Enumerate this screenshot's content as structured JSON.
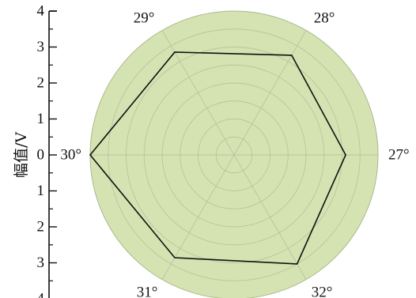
{
  "chart_data": {
    "type": "radar",
    "ylabel": "幅值/V",
    "r_range": [
      0,
      4
    ],
    "r_ticks": [
      0,
      1,
      2,
      3,
      4
    ],
    "axis_tick_labels": [
      "4",
      "3",
      "2",
      "1",
      "0",
      "1",
      "2",
      "3",
      "4"
    ],
    "categories": [
      "27°",
      "28°",
      "29°",
      "30°",
      "31°",
      "32°"
    ],
    "category_angles_deg": [
      0,
      60,
      120,
      180,
      240,
      300
    ],
    "series": [
      {
        "values": [
          3.1,
          3.2,
          3.3,
          4.0,
          3.3,
          3.5
        ]
      }
    ],
    "grid": true,
    "colors": {
      "fill": "#d4e3b1",
      "grid": "#b8c5a0",
      "line": "#111111",
      "axis": "#111111"
    }
  }
}
